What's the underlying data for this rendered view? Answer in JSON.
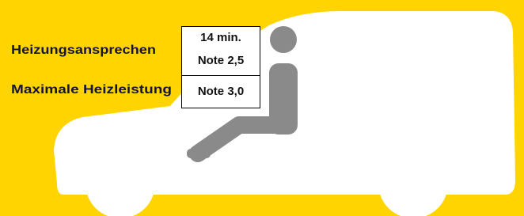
{
  "rows": [
    {
      "label": "Heizungsansprechen",
      "lines": [
        "14 min.",
        "Note 2,5"
      ]
    },
    {
      "label": "Maximale Heizleistung",
      "lines": [
        "Note 3,0"
      ]
    }
  ]
}
